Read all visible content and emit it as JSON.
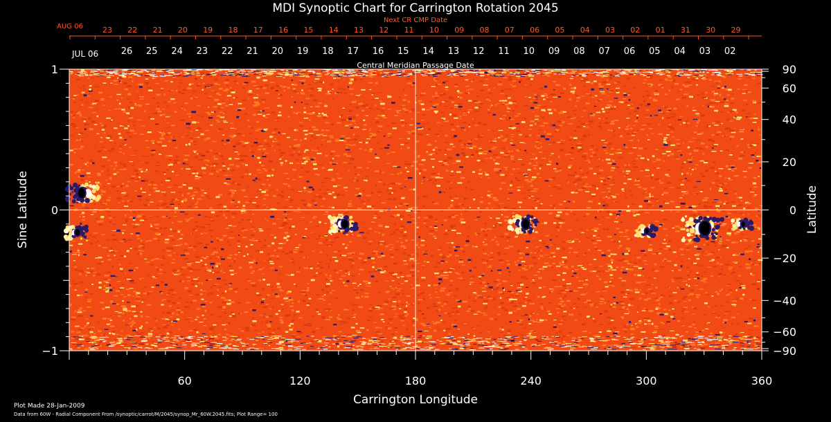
{
  "colors": {
    "background": "#000000",
    "axis": "#ffffff",
    "next_cr": "#ff5a2a",
    "field_base": "#f24a14",
    "field_mid": "#ff7a22",
    "field_pos": "#ffe070",
    "field_pos_strong": "#ffffff",
    "field_neg": "#2a1a6a",
    "field_neg_strong": "#000000",
    "gridline": "#ffffff"
  },
  "chart_data": {
    "type": "heatmap",
    "title": "MDI Synoptic Chart for Carrington Rotation 2045",
    "next_cr_label": "Next CR CMP Date",
    "next_cr_month": "AUG 06",
    "next_cr_dates": [
      "23",
      "22",
      "21",
      "20",
      "19",
      "18",
      "17",
      "16",
      "15",
      "14",
      "13",
      "12",
      "11",
      "10",
      "09",
      "08",
      "07",
      "06",
      "05",
      "04",
      "03",
      "02",
      "01",
      "31",
      "30",
      "29"
    ],
    "cmp_month": "JUL 06",
    "cmp_dates": [
      "26",
      "25",
      "24",
      "23",
      "22",
      "21",
      "20",
      "19",
      "18",
      "17",
      "16",
      "15",
      "14",
      "13",
      "12",
      "11",
      "10",
      "09",
      "08",
      "07",
      "06",
      "05",
      "04",
      "03",
      "02"
    ],
    "cmp_label": "Central Meridian Passage Date",
    "xlabel": "Carrington Longitude",
    "ylabel_left": "Sine Latitude",
    "ylabel_right": "Latitude",
    "xlim": [
      0,
      360
    ],
    "ylim": [
      -1,
      1
    ],
    "x_ticks": [
      60,
      120,
      180,
      240,
      300,
      360
    ],
    "y_ticks_left": [
      {
        "value": 1,
        "label": "1"
      },
      {
        "value": 0,
        "label": "0"
      },
      {
        "value": -1,
        "label": "−1"
      }
    ],
    "y_ticks_right_deg": [
      {
        "value": 90,
        "label": "90"
      },
      {
        "value": 60,
        "label": "60"
      },
      {
        "value": 40,
        "label": "40"
      },
      {
        "value": 20,
        "label": "20"
      },
      {
        "value": 0,
        "label": "0"
      },
      {
        "value": -20,
        "label": "−20"
      },
      {
        "value": -40,
        "label": "−40"
      },
      {
        "value": -60,
        "label": "−60"
      },
      {
        "value": -90,
        "label": "−90"
      }
    ],
    "guides": {
      "longitude": 180,
      "sine_latitude": 0
    },
    "active_regions": [
      {
        "lon": 7,
        "sinlat": 0.12,
        "pos_offset": 8,
        "strength": 1.0
      },
      {
        "lon": 4,
        "sinlat": -0.16,
        "pos_offset": -4,
        "strength": 0.7
      },
      {
        "lon": 143,
        "sinlat": -0.1,
        "pos_offset": -5,
        "strength": 0.9
      },
      {
        "lon": 237,
        "sinlat": -0.1,
        "pos_offset": -4,
        "strength": 1.0
      },
      {
        "lon": 300,
        "sinlat": -0.15,
        "pos_offset": -5,
        "strength": 0.6
      },
      {
        "lon": 330,
        "sinlat": -0.13,
        "pos_offset": -6,
        "strength": 1.4
      },
      {
        "lon": 350,
        "sinlat": -0.1,
        "pos_offset": -5,
        "strength": 0.6
      }
    ],
    "plot_range": 100,
    "grid": false
  },
  "footer": {
    "plot_made": "Plot Made 28-Jan-2009",
    "source": "Data from 60W - Radial Component From /synoptic/carrot/M/2045/synop_Mr_60W.2045.fits; Plot Range= 100"
  }
}
